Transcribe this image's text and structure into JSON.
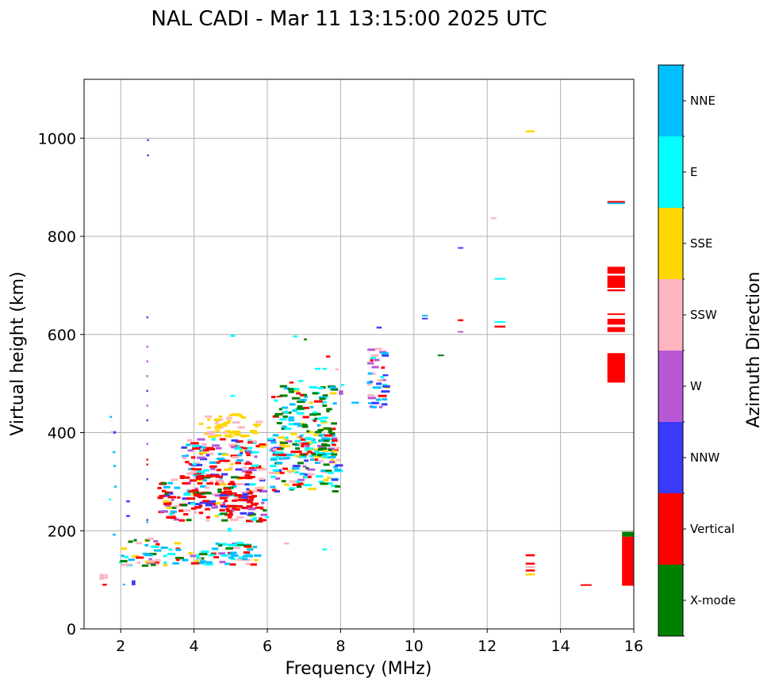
{
  "chart_data": {
    "type": "scatter",
    "title": "NAL CADI - Mar 11 13:15:00 2025 UTC",
    "xlabel": "Frequency (MHz)",
    "ylabel": "Virtual height (km)",
    "xlim": [
      1,
      16
    ],
    "ylim": [
      0,
      1120
    ],
    "xticks": [
      2,
      4,
      6,
      8,
      10,
      12,
      14,
      16
    ],
    "yticks": [
      0,
      200,
      400,
      600,
      800,
      1000
    ],
    "grid": true,
    "colorbar": {
      "label": "Azimuth Direction",
      "categories": [
        {
          "name": "X-mode",
          "color": "#008000"
        },
        {
          "name": "Vertical",
          "color": "#ff0000"
        },
        {
          "name": "NNW",
          "color": "#3a3aff"
        },
        {
          "name": "W",
          "color": "#b857d6"
        },
        {
          "name": "SSW",
          "color": "#ffb6c1"
        },
        {
          "name": "SSE",
          "color": "#ffd700"
        },
        {
          "name": "E",
          "color": "#00ffff"
        },
        {
          "name": "NNE",
          "color": "#00bfff"
        }
      ]
    },
    "blocks": [
      {
        "f0": 15.28,
        "f1": 15.76,
        "h0": 502,
        "h1": 562,
        "dir": "Vertical"
      },
      {
        "f0": 15.28,
        "f1": 15.76,
        "h0": 605,
        "h1": 615,
        "dir": "Vertical"
      },
      {
        "f0": 15.28,
        "f1": 15.76,
        "h0": 620,
        "h1": 632,
        "dir": "Vertical"
      },
      {
        "f0": 15.28,
        "f1": 15.76,
        "h0": 640,
        "h1": 643,
        "dir": "Vertical"
      },
      {
        "f0": 15.28,
        "f1": 15.76,
        "h0": 688,
        "h1": 692,
        "dir": "Vertical"
      },
      {
        "f0": 15.28,
        "f1": 15.76,
        "h0": 695,
        "h1": 720,
        "dir": "Vertical"
      },
      {
        "f0": 15.28,
        "f1": 15.76,
        "h0": 724,
        "h1": 738,
        "dir": "Vertical"
      },
      {
        "f0": 15.28,
        "f1": 15.76,
        "h0": 866,
        "h1": 869,
        "dir": "NNE"
      },
      {
        "f0": 15.28,
        "f1": 15.76,
        "h0": 869,
        "h1": 872,
        "dir": "Vertical"
      },
      {
        "f0": 15.68,
        "f1": 16.0,
        "h0": 88,
        "h1": 188,
        "dir": "Vertical"
      },
      {
        "f0": 15.68,
        "f1": 16.0,
        "h0": 188,
        "h1": 198,
        "dir": "X-mode"
      },
      {
        "f0": 14.55,
        "f1": 14.85,
        "h0": 88,
        "h1": 91,
        "dir": "Vertical"
      },
      {
        "f0": 13.05,
        "f1": 13.3,
        "h0": 109,
        "h1": 113,
        "dir": "SSE"
      },
      {
        "f0": 13.05,
        "f1": 13.3,
        "h0": 117,
        "h1": 121,
        "dir": "Vertical"
      },
      {
        "f0": 13.05,
        "f1": 13.3,
        "h0": 124,
        "h1": 128,
        "dir": "SSW"
      },
      {
        "f0": 13.05,
        "f1": 13.3,
        "h0": 131,
        "h1": 135,
        "dir": "Vertical"
      },
      {
        "f0": 13.05,
        "f1": 13.3,
        "h0": 148,
        "h1": 152,
        "dir": "Vertical"
      },
      {
        "f0": 13.05,
        "f1": 13.3,
        "h0": 1012,
        "h1": 1016,
        "dir": "SSE"
      },
      {
        "f0": 12.1,
        "f1": 12.25,
        "h0": 835,
        "h1": 839,
        "dir": "SSW"
      },
      {
        "f0": 12.2,
        "f1": 12.5,
        "h0": 712,
        "h1": 715,
        "dir": "E"
      },
      {
        "f0": 12.2,
        "f1": 12.5,
        "h0": 624,
        "h1": 627,
        "dir": "E"
      },
      {
        "f0": 12.2,
        "f1": 12.5,
        "h0": 614,
        "h1": 618,
        "dir": "Vertical"
      },
      {
        "f0": 11.2,
        "f1": 11.35,
        "h0": 775,
        "h1": 778,
        "dir": "NNW"
      },
      {
        "f0": 11.2,
        "f1": 11.35,
        "h0": 627,
        "h1": 631,
        "dir": "Vertical"
      },
      {
        "f0": 11.2,
        "f1": 11.35,
        "h0": 604,
        "h1": 607,
        "dir": "W"
      },
      {
        "f0": 10.65,
        "f1": 10.82,
        "h0": 557,
        "h1": 559,
        "dir": "X-mode"
      },
      {
        "f0": 10.22,
        "f1": 10.38,
        "h0": 637,
        "h1": 640,
        "dir": "NNE"
      },
      {
        "f0": 10.22,
        "f1": 10.38,
        "h0": 631,
        "h1": 634,
        "dir": "NNW"
      },
      {
        "f0": 8.98,
        "f1": 9.12,
        "h0": 612,
        "h1": 616,
        "dir": "NNW"
      },
      {
        "f0": 1.42,
        "f1": 1.55,
        "h0": 100,
        "h1": 112,
        "dir": "SSW"
      },
      {
        "f0": 1.5,
        "f1": 1.62,
        "h0": 88,
        "h1": 92,
        "dir": "Vertical"
      },
      {
        "f0": 1.56,
        "f1": 1.65,
        "h0": 102,
        "h1": 112,
        "dir": "SSW"
      },
      {
        "f0": 2.3,
        "f1": 2.4,
        "h0": 89,
        "h1": 99,
        "dir": "NNW"
      },
      {
        "f0": 2.05,
        "f1": 2.12,
        "h0": 89,
        "h1": 92,
        "dir": "NNE"
      },
      {
        "f0": 1.72,
        "f1": 1.8,
        "h0": 398,
        "h1": 403,
        "dir": "SSW"
      },
      {
        "f0": 1.8,
        "f1": 1.87,
        "h0": 398,
        "h1": 403,
        "dir": "NNW"
      },
      {
        "f0": 1.7,
        "f1": 1.76,
        "h0": 430,
        "h1": 434,
        "dir": "NNE"
      },
      {
        "f0": 1.78,
        "f1": 1.85,
        "h0": 358,
        "h1": 362,
        "dir": "NNE"
      },
      {
        "f0": 1.8,
        "f1": 1.87,
        "h0": 330,
        "h1": 334,
        "dir": "NNE"
      },
      {
        "f0": 1.82,
        "f1": 1.89,
        "h0": 288,
        "h1": 292,
        "dir": "NNE"
      },
      {
        "f0": 1.68,
        "f1": 1.74,
        "h0": 262,
        "h1": 266,
        "dir": "E"
      },
      {
        "f0": 2.15,
        "f1": 2.25,
        "h0": 258,
        "h1": 262,
        "dir": "NNW"
      },
      {
        "f0": 2.15,
        "f1": 2.25,
        "h0": 228,
        "h1": 232,
        "dir": "NNW"
      },
      {
        "f0": 2.72,
        "f1": 2.77,
        "h0": 994,
        "h1": 998,
        "dir": "NNW"
      },
      {
        "f0": 2.72,
        "f1": 2.77,
        "h0": 963,
        "h1": 967,
        "dir": "NNW"
      },
      {
        "f0": 2.7,
        "f1": 2.75,
        "h0": 633,
        "h1": 637,
        "dir": "NNW"
      },
      {
        "f0": 2.7,
        "f1": 2.75,
        "h0": 573,
        "h1": 577,
        "dir": "W"
      },
      {
        "f0": 2.7,
        "f1": 2.75,
        "h0": 543,
        "h1": 547,
        "dir": "W"
      },
      {
        "f0": 2.7,
        "f1": 2.75,
        "h0": 513,
        "h1": 517,
        "dir": "W"
      },
      {
        "f0": 2.7,
        "f1": 2.75,
        "h0": 483,
        "h1": 487,
        "dir": "NNW"
      },
      {
        "f0": 2.7,
        "f1": 2.75,
        "h0": 453,
        "h1": 457,
        "dir": "W"
      },
      {
        "f0": 2.7,
        "f1": 2.75,
        "h0": 423,
        "h1": 427,
        "dir": "NNW"
      },
      {
        "f0": 2.7,
        "f1": 2.75,
        "h0": 375,
        "h1": 379,
        "dir": "W"
      },
      {
        "f0": 2.7,
        "f1": 2.75,
        "h0": 343,
        "h1": 347,
        "dir": "Vertical"
      },
      {
        "f0": 2.7,
        "f1": 2.75,
        "h0": 333,
        "h1": 337,
        "dir": "Vertical"
      },
      {
        "f0": 2.7,
        "f1": 2.75,
        "h0": 303,
        "h1": 307,
        "dir": "NNW"
      },
      {
        "f0": 2.7,
        "f1": 2.75,
        "h0": 220,
        "h1": 224,
        "dir": "NNW"
      },
      {
        "f0": 2.7,
        "f1": 2.75,
        "h0": 215,
        "h1": 219,
        "dir": "NNE"
      },
      {
        "f0": 1.78,
        "f1": 1.86,
        "h0": 190,
        "h1": 194,
        "dir": "NNE"
      },
      {
        "f0": 2.0,
        "f1": 2.1,
        "h0": 147,
        "h1": 151,
        "dir": "NNE"
      },
      {
        "f0": 5.0,
        "f1": 5.12,
        "h0": 595,
        "h1": 600,
        "dir": "E"
      },
      {
        "f0": 5.0,
        "f1": 5.12,
        "h0": 473,
        "h1": 477,
        "dir": "E"
      },
      {
        "f0": 4.92,
        "f1": 5.02,
        "h0": 198,
        "h1": 206,
        "dir": "E"
      },
      {
        "f0": 5.5,
        "f1": 5.62,
        "h0": 228,
        "h1": 232,
        "dir": "SSE"
      },
      {
        "f0": 5.6,
        "f1": 5.72,
        "h0": 224,
        "h1": 228,
        "dir": "E"
      },
      {
        "f0": 5.45,
        "f1": 5.55,
        "h0": 230,
        "h1": 234,
        "dir": "NNW"
      },
      {
        "f0": 5.95,
        "f1": 6.05,
        "h0": 226,
        "h1": 230,
        "dir": "E"
      },
      {
        "f0": 6.45,
        "f1": 6.6,
        "h0": 172,
        "h1": 176,
        "dir": "SSW"
      },
      {
        "f0": 7.5,
        "f1": 7.62,
        "h0": 160,
        "h1": 164,
        "dir": "E"
      },
      {
        "f0": 6.7,
        "f1": 6.82,
        "h0": 594,
        "h1": 598,
        "dir": "E"
      },
      {
        "f0": 7.0,
        "f1": 7.08,
        "h0": 588,
        "h1": 592,
        "dir": "X-mode"
      },
      {
        "f0": 7.6,
        "f1": 7.72,
        "h0": 553,
        "h1": 557,
        "dir": "Vertical"
      },
      {
        "f0": 7.3,
        "f1": 7.45,
        "h0": 528,
        "h1": 532,
        "dir": "E"
      },
      {
        "f0": 7.5,
        "f1": 7.62,
        "h0": 528,
        "h1": 532,
        "dir": "E"
      },
      {
        "f0": 7.85,
        "f1": 7.95,
        "h0": 527,
        "h1": 531,
        "dir": "SSW"
      },
      {
        "f0": 6.6,
        "f1": 6.72,
        "h0": 500,
        "h1": 504,
        "dir": "Vertical"
      },
      {
        "f0": 6.25,
        "f1": 6.4,
        "h0": 472,
        "h1": 475,
        "dir": "Vertical"
      },
      {
        "f0": 6.4,
        "f1": 6.55,
        "h0": 438,
        "h1": 442,
        "dir": "Vertical"
      },
      {
        "f0": 6.85,
        "f1": 6.98,
        "h0": 503,
        "h1": 507,
        "dir": "E"
      },
      {
        "f0": 7.95,
        "f1": 8.07,
        "h0": 477,
        "h1": 486,
        "dir": "W"
      },
      {
        "f0": 8.3,
        "f1": 8.5,
        "h0": 459,
        "h1": 463,
        "dir": "NNE"
      },
      {
        "f0": 8.75,
        "f1": 8.95,
        "h0": 458,
        "h1": 462,
        "dir": "NNE"
      },
      {
        "f0": 9.2,
        "f1": 9.35,
        "h0": 490,
        "h1": 494,
        "dir": "SSE"
      },
      {
        "f0": 9.15,
        "f1": 9.3,
        "h0": 515,
        "h1": 519,
        "dir": "NNW"
      },
      {
        "f0": 9.12,
        "f1": 9.25,
        "h0": 505,
        "h1": 509,
        "dir": "W"
      },
      {
        "f0": 8.0,
        "f1": 8.1,
        "h0": 495,
        "h1": 499,
        "dir": "E"
      }
    ],
    "clusters": [
      {
        "f0": 2.95,
        "f1": 5.65,
        "h0": 130,
        "h1": 176,
        "colors": [
          "E",
          "E",
          "NNE",
          "Vertical",
          "SSW",
          "W",
          "SSE",
          "NNE",
          "Vertical",
          "E",
          "X-mode"
        ]
      },
      {
        "f0": 1.95,
        "f1": 2.95,
        "h0": 128,
        "h1": 186,
        "colors": [
          "SSW",
          "SSE",
          "Vertical",
          "E",
          "NNE",
          "SSW",
          "X-mode",
          "W"
        ]
      },
      {
        "f0": 3.0,
        "f1": 5.9,
        "h0": 218,
        "h1": 312,
        "colors": [
          "Vertical",
          "Vertical",
          "E",
          "NNE",
          "Vertical",
          "W",
          "SSE",
          "SSW",
          "NNW",
          "X-mode",
          "Vertical"
        ]
      },
      {
        "f0": 3.7,
        "f1": 5.7,
        "h0": 240,
        "h1": 275,
        "colors": [
          "Vertical",
          "Vertical",
          "Vertical",
          "W",
          "NNW",
          "E",
          "Vertical"
        ]
      },
      {
        "f0": 3.6,
        "f1": 5.8,
        "h0": 295,
        "h1": 390,
        "colors": [
          "Vertical",
          "SSE",
          "NNE",
          "E",
          "Vertical",
          "SSW",
          "NNW",
          "W",
          "Vertical"
        ]
      },
      {
        "f0": 4.1,
        "f1": 5.7,
        "h0": 390,
        "h1": 438,
        "colors": [
          "SSE",
          "SSE",
          "SSE",
          "SSW",
          "SSE"
        ]
      },
      {
        "f0": 6.0,
        "f1": 7.9,
        "h0": 280,
        "h1": 395,
        "colors": [
          "X-mode",
          "E",
          "NNW",
          "W",
          "Vertical",
          "SSW",
          "NNE",
          "E",
          "SSE",
          "E"
        ]
      },
      {
        "f0": 6.1,
        "f1": 7.8,
        "h0": 350,
        "h1": 495,
        "colors": [
          "X-mode",
          "X-mode",
          "X-mode",
          "Vertical",
          "E",
          "NNE",
          "SSE",
          "E"
        ]
      },
      {
        "f0": 8.7,
        "f1": 9.15,
        "h0": 452,
        "h1": 572,
        "colors": [
          "NNW",
          "W",
          "NNE",
          "SSE",
          "E",
          "SSW",
          "NNW",
          "Vertical",
          "W"
        ]
      }
    ]
  }
}
